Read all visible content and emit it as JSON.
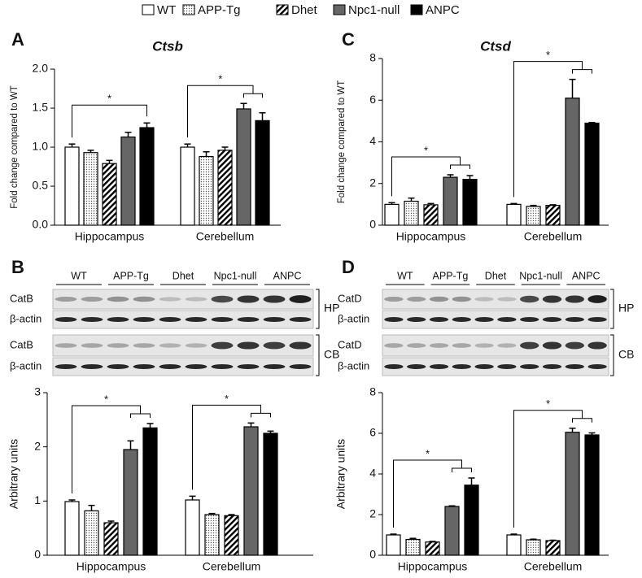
{
  "legend": [
    {
      "name": "WT",
      "color": "#ffffff",
      "pattern": null
    },
    {
      "name": "APP-Tg",
      "color": "#ffffff",
      "pattern": "dots"
    },
    {
      "name": "Dhet",
      "color": "#ffffff",
      "pattern": "hatch"
    },
    {
      "name": "Npc1-null",
      "color": "#666666",
      "pattern": null
    },
    {
      "name": "ANPC",
      "color": "#000000",
      "pattern": null
    }
  ],
  "chart_data": [
    {
      "type": "bar",
      "panel": "A",
      "title": "Ctsb",
      "y_label": "Fold change compared to WT",
      "categories": [
        "Hippocampus",
        "Cerebellum"
      ],
      "series": [
        {
          "values": [
            1.0,
            1.0
          ],
          "errors": [
            0.04,
            0.04
          ]
        },
        {
          "values": [
            0.93,
            0.88
          ],
          "errors": [
            0.03,
            0.06
          ]
        },
        {
          "values": [
            0.79,
            0.96
          ],
          "errors": [
            0.04,
            0.04
          ]
        },
        {
          "values": [
            1.13,
            1.49
          ],
          "errors": [
            0.06,
            0.07
          ]
        },
        {
          "values": [
            1.25,
            1.34
          ],
          "errors": [
            0.06,
            0.1
          ]
        }
      ],
      "ylim": [
        0,
        2
      ],
      "yticks": [
        {
          "value": 0,
          "label": "0.0"
        },
        0.5,
        {
          "value": 1,
          "label": "1.0"
        },
        1.5,
        {
          "value": 2,
          "label": "2.0"
        }
      ],
      "annotations": [
        {
          "text": "*",
          "group": 0,
          "to": [
            4
          ]
        },
        {
          "text": "*",
          "group": 1,
          "to": [
            3,
            4
          ]
        }
      ]
    },
    {
      "type": "bar",
      "panel": "C",
      "title": "Ctsd",
      "y_label": "Fold change compared to WT",
      "categories": [
        "Hippocampus",
        "Cerebellum"
      ],
      "series": [
        {
          "values": [
            1.0,
            1.0
          ],
          "errors": [
            0.08,
            0.04
          ]
        },
        {
          "values": [
            1.15,
            0.9
          ],
          "errors": [
            0.15,
            0.05
          ]
        },
        {
          "values": [
            0.98,
            0.95
          ],
          "errors": [
            0.06,
            0.03
          ]
        },
        {
          "values": [
            2.3,
            6.1
          ],
          "errors": [
            0.12,
            0.9
          ]
        },
        {
          "values": [
            2.2,
            4.9
          ],
          "errors": [
            0.18,
            0.03
          ]
        }
      ],
      "ylim": [
        0,
        8
      ],
      "yticks": [
        0,
        2,
        4,
        6,
        8
      ],
      "annotations": [
        {
          "text": "*",
          "group": 0,
          "to": [
            3,
            4
          ]
        },
        {
          "text": "*",
          "group": 1,
          "to": [
            3,
            4
          ]
        }
      ]
    },
    {
      "type": "bar",
      "y_label": "Arbitrary units",
      "categories": [
        "Hippocampus",
        "Cerebellum"
      ],
      "series": [
        {
          "values": [
            0.99,
            1.02
          ],
          "errors": [
            0.03,
            0.07
          ]
        },
        {
          "values": [
            0.82,
            0.75
          ],
          "errors": [
            0.1,
            0.02
          ]
        },
        {
          "values": [
            0.6,
            0.73
          ],
          "errors": [
            0.03,
            0.02
          ]
        },
        {
          "values": [
            1.95,
            2.37
          ],
          "errors": [
            0.16,
            0.07
          ]
        },
        {
          "values": [
            2.35,
            2.25
          ],
          "errors": [
            0.08,
            0.04
          ]
        }
      ],
      "ylim": [
        0,
        3
      ],
      "yticks": [
        0,
        1,
        2,
        3
      ],
      "annotations": [
        {
          "text": "*",
          "group": 0,
          "to": [
            3,
            4
          ]
        },
        {
          "text": "*",
          "group": 1,
          "to": [
            3,
            4
          ]
        }
      ]
    },
    {
      "type": "bar",
      "y_label": "Arbitrary units",
      "categories": [
        "Hippocampus",
        "Cerebellum"
      ],
      "series": [
        {
          "values": [
            1.0,
            1.0
          ],
          "errors": [
            0.04,
            0.04
          ]
        },
        {
          "values": [
            0.78,
            0.76
          ],
          "errors": [
            0.05,
            0.03
          ]
        },
        {
          "values": [
            0.65,
            0.72
          ],
          "errors": [
            0.03,
            0.02
          ]
        },
        {
          "values": [
            2.4,
            6.05
          ],
          "errors": [
            0.03,
            0.2
          ]
        },
        {
          "values": [
            3.45,
            5.92
          ],
          "errors": [
            0.35,
            0.1
          ]
        }
      ],
      "ylim": [
        0,
        8
      ],
      "yticks": [
        0,
        2,
        4,
        6,
        8
      ],
      "annotations": [
        {
          "text": "*",
          "group": 0,
          "to": [
            3,
            4
          ]
        },
        {
          "text": "*",
          "group": 1,
          "to": [
            3,
            4
          ]
        }
      ]
    }
  ],
  "blots": [
    {
      "panel": "B",
      "groups": [
        "WT",
        "APP-Tg",
        "Dhet",
        "Npc1-null",
        "ANPC"
      ],
      "rows": [
        "CatB",
        "β-actin",
        "CatB",
        "β-actin"
      ],
      "regions": [
        "HP",
        "CB"
      ]
    },
    {
      "panel": "D",
      "groups": [
        "WT",
        "APP-Tg",
        "Dhet",
        "Npc1-null",
        "ANPC"
      ],
      "rows": [
        "CatD",
        "β-actin",
        "CatD",
        "β-actin"
      ],
      "regions": [
        "HP",
        "CB"
      ]
    }
  ]
}
